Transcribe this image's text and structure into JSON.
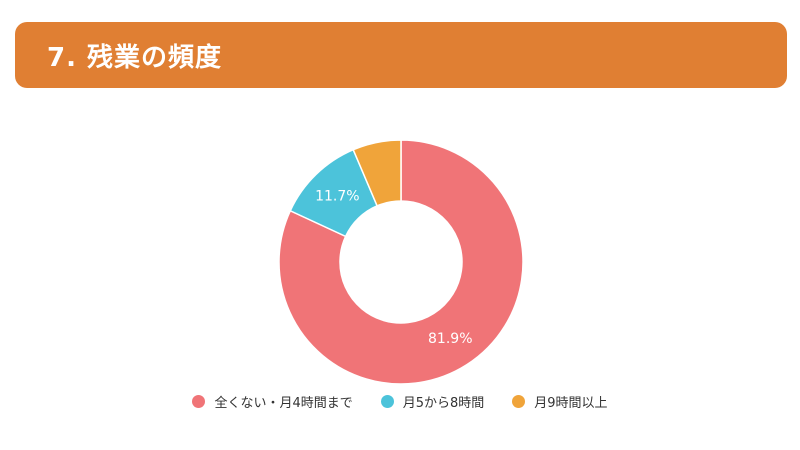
{
  "header": {
    "title": "7. 残業の頻度",
    "color": "#e07f33"
  },
  "chart_data": {
    "type": "pie",
    "variant": "donut",
    "title": "",
    "slices": [
      {
        "label": "全くない・月4時間まで",
        "value": 81.9,
        "display": "81.9%",
        "color": "#f07477"
      },
      {
        "label": "月5から8時間",
        "value": 11.7,
        "display": "11.7%",
        "color": "#4cc3da"
      },
      {
        "label": "月9時間以上",
        "value": 6.4,
        "display": "",
        "color": "#f0a43a"
      }
    ],
    "legend_position": "bottom"
  }
}
